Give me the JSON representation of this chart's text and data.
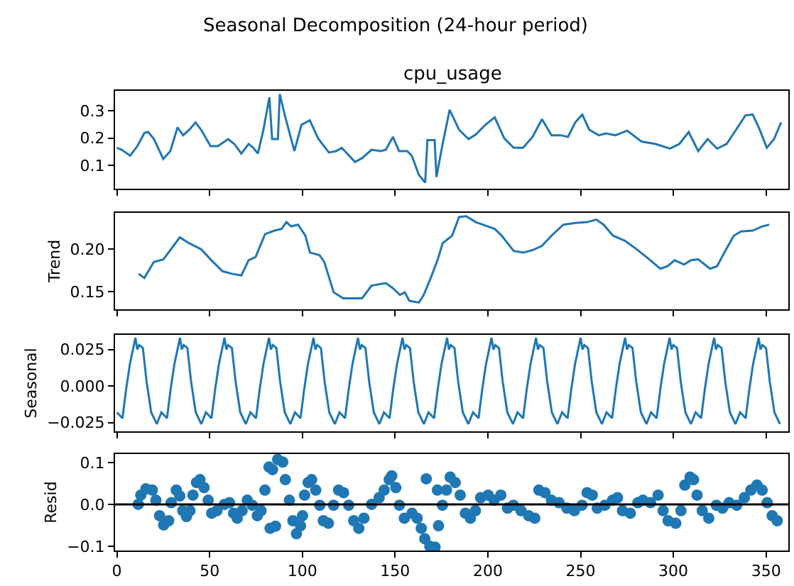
{
  "chart_data": [
    {
      "type": "line",
      "title": "Seasonal Decomposition (24-hour period)",
      "subtitle": "cpu_usage",
      "xlim": [
        -1,
        362
      ],
      "xticks": [
        0,
        50,
        100,
        150,
        200,
        250,
        300,
        350
      ],
      "ylim": [
        0.014,
        0.373
      ],
      "yticks": [
        0.1,
        0.2,
        0.3
      ],
      "tick_labels": "y",
      "series": [
        {
          "color": "#1f77b4",
          "x": [
            0,
            2.6,
            7.1,
            11,
            14.8,
            16.8,
            20,
            25,
            28.8,
            32.7,
            35.7,
            39,
            42.4,
            45.4,
            50.5,
            54.4,
            60,
            63.3,
            67.1,
            71,
            73.5,
            76,
            79,
            82.2,
            83.7,
            86.8,
            87.8,
            90.9,
            95.7,
            99.5,
            104,
            108.7,
            114.3,
            118.2,
            121.2,
            128.4,
            132.2,
            137.3,
            142.4,
            145,
            148.8,
            152.1,
            156.5,
            159,
            162.8,
            166.2,
            167.4,
            171.3,
            172.3,
            175.6,
            179.4,
            184.5,
            189.6,
            193.5,
            198.6,
            203.7,
            208.8,
            213.9,
            219,
            224.1,
            229.2,
            234.3,
            239.4,
            243.2,
            247.1,
            250.9,
            254.7,
            259.8,
            263.7,
            268.8,
            275.1,
            282.8,
            290.5,
            298.1,
            303.2,
            308.3,
            313.4,
            318.5,
            323.6,
            328.7,
            333.8,
            338.9,
            342.8,
            346.6,
            350.4,
            354.3,
            358.1
          ],
          "values": [
            0.164,
            0.157,
            0.135,
            0.17,
            0.218,
            0.222,
            0.196,
            0.123,
            0.152,
            0.239,
            0.21,
            0.23,
            0.257,
            0.23,
            0.17,
            0.17,
            0.196,
            0.178,
            0.143,
            0.178,
            0.164,
            0.143,
            0.23,
            0.349,
            0.196,
            0.196,
            0.361,
            0.274,
            0.152,
            0.248,
            0.265,
            0.196,
            0.147,
            0.152,
            0.164,
            0.112,
            0.126,
            0.157,
            0.152,
            0.157,
            0.204,
            0.152,
            0.152,
            0.135,
            0.065,
            0.036,
            0.192,
            0.192,
            0.057,
            0.178,
            0.303,
            0.23,
            0.196,
            0.213,
            0.248,
            0.276,
            0.199,
            0.164,
            0.164,
            0.204,
            0.269,
            0.21,
            0.21,
            0.204,
            0.257,
            0.286,
            0.23,
            0.21,
            0.217,
            0.21,
            0.227,
            0.187,
            0.178,
            0.161,
            0.178,
            0.222,
            0.152,
            0.196,
            0.161,
            0.178,
            0.23,
            0.283,
            0.286,
            0.23,
            0.164,
            0.196,
            0.257
          ]
        }
      ]
    },
    {
      "type": "line",
      "ylabel": "Trend",
      "xlim": [
        -1,
        362
      ],
      "xticks": [
        0,
        50,
        100,
        150,
        200,
        250,
        300,
        350
      ],
      "ylim": [
        0.129,
        0.243
      ],
      "yticks": [
        {
          "value": 0.15,
          "label": "0.15"
        },
        {
          "value": 0.2,
          "label": "0.20"
        }
      ],
      "tick_labels": "y",
      "series": [
        {
          "color": "#1f77b4",
          "x": [
            11.7,
            14.8,
            19.9,
            25,
            28.8,
            33.9,
            39,
            45.4,
            50.5,
            56.9,
            62,
            67.1,
            71,
            74.8,
            79.9,
            85,
            88.8,
            91.4,
            93.9,
            97.7,
            101.6,
            104.1,
            109.2,
            111.8,
            116.9,
            122,
            127.1,
            132.2,
            137.3,
            145,
            148.8,
            152.6,
            155.2,
            157.7,
            162.8,
            165.4,
            169.2,
            173,
            175.6,
            180.7,
            184.5,
            188.3,
            193.5,
            198.6,
            203.7,
            207.5,
            213.9,
            219,
            224.1,
            229.2,
            234.3,
            240.7,
            247.1,
            253.5,
            258.5,
            262.4,
            267.5,
            273.9,
            279,
            285.4,
            293,
            296.9,
            300.7,
            305.8,
            309.6,
            313.4,
            319.8,
            323.6,
            327.5,
            332.6,
            336.4,
            342.8,
            347.9,
            351.7
          ],
          "values": [
            0.171,
            0.166,
            0.185,
            0.188,
            0.199,
            0.214,
            0.207,
            0.2,
            0.188,
            0.174,
            0.171,
            0.169,
            0.187,
            0.191,
            0.218,
            0.222,
            0.224,
            0.232,
            0.227,
            0.229,
            0.216,
            0.196,
            0.193,
            0.185,
            0.149,
            0.142,
            0.142,
            0.142,
            0.157,
            0.16,
            0.154,
            0.146,
            0.149,
            0.139,
            0.137,
            0.146,
            0.166,
            0.188,
            0.207,
            0.216,
            0.238,
            0.239,
            0.232,
            0.228,
            0.224,
            0.216,
            0.198,
            0.196,
            0.199,
            0.204,
            0.216,
            0.229,
            0.231,
            0.232,
            0.235,
            0.229,
            0.216,
            0.21,
            0.202,
            0.191,
            0.177,
            0.18,
            0.187,
            0.182,
            0.187,
            0.188,
            0.177,
            0.18,
            0.196,
            0.216,
            0.221,
            0.222,
            0.227,
            0.229
          ]
        }
      ]
    },
    {
      "type": "line",
      "ylabel": "Seasonal",
      "xlim": [
        -1,
        362
      ],
      "xticks": [
        0,
        50,
        100,
        150,
        200,
        250,
        300,
        350
      ],
      "ylim": [
        -0.031,
        0.035
      ],
      "yticks": [
        {
          "value": -0.025,
          "label": "−0.025"
        },
        {
          "value": 0,
          "label": "0.000"
        },
        {
          "value": 0.025,
          "label": "0.025"
        }
      ],
      "tick_labels": "y",
      "series": [
        {
          "color": "#1f77b4",
          "x": [
            0,
            3,
            5,
            7,
            10,
            11,
            12,
            14,
            16,
            18.5,
            21.5,
            24,
            27,
            29,
            31,
            34,
            35,
            36,
            38,
            40,
            42.5,
            45.5,
            48,
            51,
            53,
            55,
            58,
            59,
            60,
            62,
            64,
            66.5,
            69.5,
            72,
            75,
            77,
            79,
            82,
            83,
            84,
            86,
            88,
            90.5,
            93.5,
            96,
            99,
            101,
            103,
            106,
            107,
            108,
            110,
            112,
            114.5,
            117.5,
            120,
            123,
            125,
            127,
            130,
            131,
            132,
            134,
            136,
            138.5,
            141.5,
            144,
            147,
            149,
            151,
            154,
            155,
            156,
            158,
            160,
            162.5,
            165.5,
            168,
            171,
            173,
            175,
            178,
            179,
            180,
            182,
            184,
            186.5,
            189.5,
            192,
            195,
            197,
            199,
            202,
            203,
            204,
            206,
            208,
            210.5,
            213.5,
            216,
            219,
            221,
            223,
            226,
            227,
            228,
            230,
            232,
            234.5,
            237.5,
            240,
            243,
            245,
            247,
            250,
            251,
            252,
            254,
            256,
            258.5,
            261.5,
            264,
            267,
            269,
            271,
            274,
            275,
            276,
            278,
            280,
            282.5,
            285.5,
            288,
            291,
            293,
            295,
            298,
            299,
            300,
            302,
            304,
            306.5,
            309.5,
            312,
            315,
            317,
            319,
            322,
            323,
            324,
            326,
            328,
            330.5,
            333.5,
            336,
            339,
            341,
            343,
            346,
            347,
            348,
            350,
            352,
            354.5,
            357.5
          ],
          "values": [
            -0.018,
            -0.022,
            -0.002,
            0.015,
            0.033,
            0.025,
            0.028,
            0.026,
            0.003,
            -0.018,
            -0.026,
            -0.018,
            -0.022,
            -0.002,
            0.015,
            0.033,
            0.025,
            0.028,
            0.026,
            0.003,
            -0.018,
            -0.026,
            -0.018,
            -0.022,
            -0.002,
            0.015,
            0.033,
            0.025,
            0.028,
            0.026,
            0.003,
            -0.018,
            -0.026,
            -0.018,
            -0.022,
            -0.002,
            0.015,
            0.033,
            0.025,
            0.028,
            0.026,
            0.003,
            -0.018,
            -0.026,
            -0.018,
            -0.022,
            -0.002,
            0.015,
            0.033,
            0.025,
            0.028,
            0.026,
            0.003,
            -0.018,
            -0.026,
            -0.018,
            -0.022,
            -0.002,
            0.015,
            0.033,
            0.025,
            0.028,
            0.026,
            0.003,
            -0.018,
            -0.026,
            -0.018,
            -0.022,
            -0.002,
            0.015,
            0.033,
            0.025,
            0.028,
            0.026,
            0.003,
            -0.018,
            -0.026,
            -0.018,
            -0.022,
            -0.002,
            0.015,
            0.033,
            0.025,
            0.028,
            0.026,
            0.003,
            -0.018,
            -0.026,
            -0.018,
            -0.022,
            -0.002,
            0.015,
            0.033,
            0.025,
            0.028,
            0.026,
            0.003,
            -0.018,
            -0.026,
            -0.018,
            -0.022,
            -0.002,
            0.015,
            0.033,
            0.025,
            0.028,
            0.026,
            0.003,
            -0.018,
            -0.026,
            -0.018,
            -0.022,
            -0.002,
            0.015,
            0.033,
            0.025,
            0.028,
            0.026,
            0.003,
            -0.018,
            -0.026,
            -0.018,
            -0.022,
            -0.002,
            0.015,
            0.033,
            0.025,
            0.028,
            0.026,
            0.003,
            -0.018,
            -0.026,
            -0.018,
            -0.022,
            -0.002,
            0.015,
            0.033,
            0.025,
            0.028,
            0.026,
            0.003,
            -0.018,
            -0.026,
            -0.018,
            -0.022,
            -0.002,
            0.015,
            0.033,
            0.025,
            0.028,
            0.026,
            0.003,
            -0.018,
            -0.026,
            -0.018,
            -0.022,
            -0.002,
            0.015,
            0.033,
            0.025,
            0.028,
            0.026,
            0.003,
            -0.018,
            -0.026
          ]
        }
      ]
    },
    {
      "type": "scatter",
      "ylabel": "Resid",
      "marker": "circle",
      "xlim": [
        -1,
        362
      ],
      "xticks": [
        0,
        50,
        100,
        150,
        200,
        250,
        300,
        350
      ],
      "ylim": [
        -0.11,
        0.12
      ],
      "yticks": [
        {
          "value": -0.1,
          "label": "−0.1"
        },
        {
          "value": 0,
          "label": "0.0"
        },
        {
          "value": 0.1,
          "label": "0.1"
        }
      ],
      "ref_lines": [
        {
          "axis": "y",
          "value": 0,
          "color": "#000000"
        }
      ],
      "series": [
        {
          "color": "#1f77b4",
          "x": [
            11.5,
            12.9,
            15.6,
            19.1,
            21,
            23,
            25.2,
            27.9,
            29.3,
            32,
            33.9,
            35.5,
            37.5,
            39.4,
            41,
            42.9,
            44.8,
            47,
            49.2,
            51.1,
            53.9,
            58,
            60.7,
            62.9,
            64.9,
            67.5,
            70.3,
            73,
            75.7,
            77.7,
            79.8,
            82,
            83.9,
            86.7,
            89.4,
            90.8,
            93,
            94.9,
            96.8,
            99,
            100.1,
            101.2,
            103.1,
            105,
            107.2,
            109.4,
            111.3,
            114,
            116.8,
            119.5,
            122.2,
            125,
            127.7,
            130.4,
            133.2,
            137.3,
            141.4,
            144.1,
            146.8,
            148.2,
            150.4,
            152.3,
            155,
            159.1,
            161.9,
            164.1,
            166,
            168.7,
            171.5,
            173.4,
            175.5,
            177.7,
            179.7,
            182.4,
            185.1,
            187.9,
            190.6,
            193.3,
            196.1,
            200.2,
            203.4,
            207,
            210.6,
            213.8,
            217.9,
            222,
            225.3,
            227.5,
            230.8,
            234.3,
            238.4,
            242.6,
            246.7,
            250.8,
            253.5,
            256.3,
            259,
            263.1,
            267.2,
            269.9,
            272.6,
            276.8,
            280.9,
            283.6,
            287.7,
            291.8,
            294.5,
            297.2,
            301.3,
            304.1,
            306.2,
            309,
            310.9,
            312.8,
            315.6,
            319.1,
            323.2,
            326.5,
            330.1,
            334.2,
            338.3,
            341.8,
            345.1,
            347.9,
            350.6,
            353.3,
            356,
            82.6,
            85.5,
            166.8,
            172.8
          ],
          "values": [
            0,
            0.022,
            0.037,
            0.034,
            0.01,
            -0.027,
            -0.049,
            -0.039,
            0.004,
            0.034,
            0.02,
            -0.015,
            -0.029,
            -0.015,
            0.022,
            0.052,
            0.059,
            0.04,
            0.01,
            -0.021,
            -0.015,
            0,
            0.004,
            -0.021,
            -0.033,
            -0.015,
            0.01,
            -0.002,
            -0.027,
            -0.015,
            0.034,
            0.089,
            0.083,
            0.107,
            0.101,
            0.059,
            0.01,
            -0.039,
            -0.07,
            -0.051,
            -0.027,
            0.022,
            0.052,
            0.059,
            0.034,
            -0.002,
            -0.039,
            -0.045,
            -0.002,
            0.034,
            0.028,
            -0.002,
            -0.039,
            -0.057,
            -0.033,
            0,
            0.016,
            0.034,
            0.059,
            0.068,
            0.04,
            -0.002,
            -0.033,
            -0.021,
            -0.033,
            -0.057,
            -0.082,
            -0.1,
            -0.102,
            -0.051,
            -0.002,
            0.034,
            0.065,
            0.052,
            0.022,
            -0.021,
            -0.033,
            -0.015,
            0.016,
            0.022,
            0.01,
            0.022,
            -0.009,
            -0.002,
            -0.015,
            -0.027,
            -0.033,
            0.034,
            0.028,
            0.01,
            0.004,
            -0.009,
            -0.015,
            -0.002,
            0.028,
            0.022,
            -0.009,
            -0.002,
            0.01,
            0.016,
            -0.015,
            -0.021,
            0.004,
            0.01,
            0.004,
            0.022,
            -0.015,
            -0.039,
            -0.045,
            -0.015,
            0.046,
            0.065,
            0.059,
            0.022,
            -0.015,
            -0.033,
            -0.002,
            -0.009,
            0.004,
            -0.002,
            0.016,
            0.034,
            0.046,
            0.034,
            0.004,
            -0.027,
            -0.039,
            -0.057,
            -0.052,
            0.061,
            0.034
          ]
        }
      ]
    }
  ]
}
